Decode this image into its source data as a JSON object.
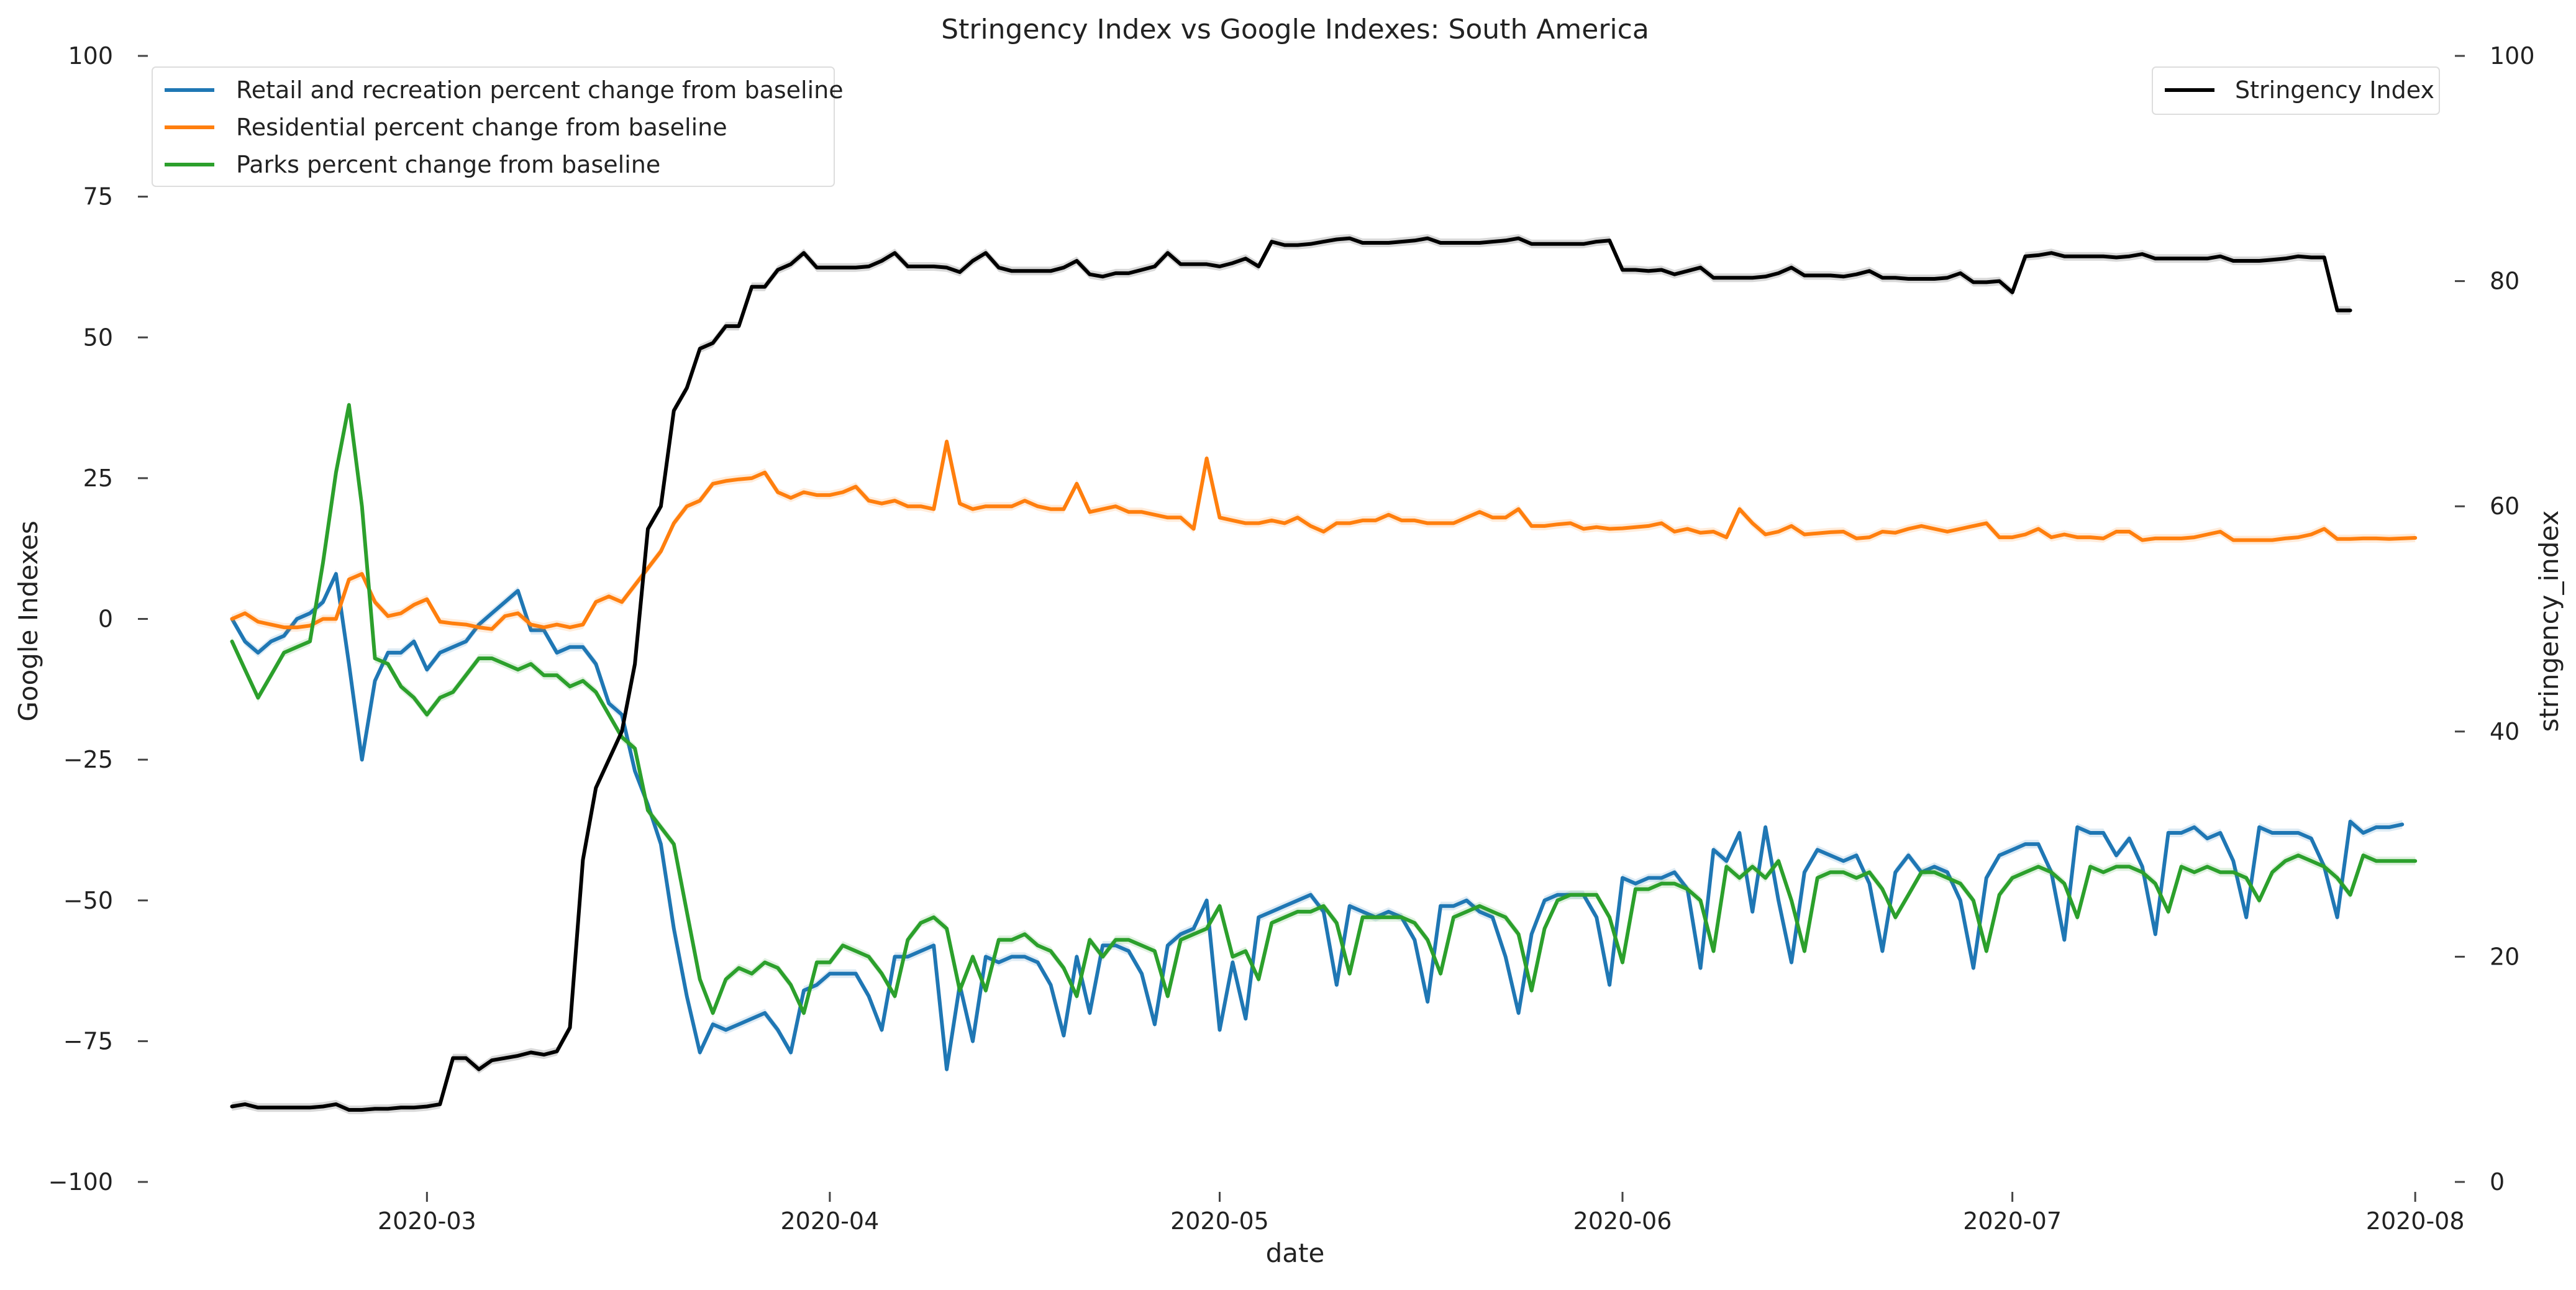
{
  "chart_data": {
    "type": "line",
    "title": "Stringency Index vs Google Indexes:  South America",
    "xlabel": "date",
    "ylabel_left": "Google Indexes",
    "ylabel_right": "stringency_index",
    "x_ticks": [
      "2020-03",
      "2020-04",
      "2020-05",
      "2020-06",
      "2020-07",
      "2020-08"
    ],
    "xlim": [
      "2020-02-09",
      "2020-08-03"
    ],
    "ylim_left": [
      -100,
      100
    ],
    "yticks_left": [
      100,
      75,
      50,
      25,
      0,
      -25,
      -50,
      -75,
      -100
    ],
    "yticks_left_labels": [
      "100",
      "75",
      "50",
      "25",
      "0",
      "−25",
      "−50",
      "−75",
      "−100"
    ],
    "ylim_right": [
      0,
      100
    ],
    "yticks_right": [
      100,
      80,
      60,
      40,
      20,
      0
    ],
    "yticks_right_labels": [
      "100",
      "80",
      "60",
      "40",
      "20",
      "0"
    ],
    "grid": false,
    "legend_left_placement": "upper-left",
    "legend_right_placement": "upper-right",
    "x_start": "2020-02-15",
    "x_step_days": 1,
    "left_series": [
      {
        "name": "Retail and recreation percent change from baseline",
        "color": "#1f77b4",
        "values": [
          0,
          -4,
          -6,
          -4,
          -3,
          0,
          1,
          3,
          8,
          -8,
          -25,
          -11,
          -6,
          -6,
          -4,
          -9,
          -6,
          -5,
          -4,
          -1,
          1,
          3,
          5,
          -2,
          -2,
          -6,
          -5,
          -5,
          -8,
          -15,
          -17,
          -27,
          -33,
          -40,
          -55,
          -67,
          -77,
          -72,
          -73,
          -72,
          -71,
          -70,
          -73,
          -77,
          -66,
          -65,
          -63,
          -63,
          -63,
          -67,
          -73,
          -60,
          -60,
          -59,
          -58,
          -80,
          -65,
          -75,
          -60,
          -61,
          -60,
          -60,
          -61,
          -65,
          -74,
          -60,
          -70,
          -58,
          -58,
          -59,
          -63,
          -72,
          -58,
          -56,
          -55,
          -50,
          -73,
          -61,
          -71,
          -53,
          -52,
          -51,
          -50,
          -49,
          -52,
          -65,
          -51,
          -52,
          -53,
          -52,
          -53,
          -57,
          -68,
          -51,
          -51,
          -50,
          -52,
          -53,
          -60,
          -70,
          -56,
          -50,
          -49,
          -49,
          -49,
          -53,
          -65,
          -46,
          -47,
          -46,
          -46,
          -45,
          -48,
          -62,
          -41,
          -43,
          -38,
          -52,
          -37,
          -50,
          -61,
          -45,
          -41,
          -42,
          -43,
          -42,
          -47,
          -59,
          -45,
          -42,
          -45,
          -44,
          -45,
          -50,
          -62,
          -46,
          -42,
          -41,
          -40,
          -40,
          -45,
          -57,
          -37,
          -38,
          -38,
          -42,
          -39,
          -44,
          -56,
          -38,
          -38,
          -37,
          -39,
          -38,
          -43,
          -53,
          -37,
          -38,
          -38,
          -38,
          -39,
          -44,
          -53,
          -36,
          -38,
          -37,
          -37,
          -36.5
        ]
      },
      {
        "name": "Residential percent change from baseline",
        "color": "#ff7f0e",
        "values": [
          0,
          1,
          -0.5,
          -1,
          -1.5,
          -1.5,
          -1.2,
          0,
          0,
          7,
          8,
          3,
          0.5,
          1,
          2.5,
          3.5,
          -0.5,
          -0.8,
          -1,
          -1.5,
          -1.8,
          0.5,
          1,
          -1,
          -1.5,
          -1,
          -1.5,
          -1,
          3,
          4,
          3,
          6,
          9,
          12,
          17,
          20,
          21,
          24,
          24.5,
          24.8,
          25,
          26,
          22.5,
          21.5,
          22.5,
          22,
          22,
          22.5,
          23.5,
          21,
          20.5,
          21,
          20,
          20,
          19.5,
          31.5,
          20.5,
          19.5,
          20,
          20,
          20,
          21,
          20,
          19.5,
          19.5,
          24,
          19,
          19.5,
          20,
          19,
          19,
          18.5,
          18,
          18,
          16,
          28.5,
          18,
          17.5,
          17,
          17,
          17.5,
          17,
          18,
          16.5,
          15.5,
          17,
          17,
          17.5,
          17.5,
          18.5,
          17.5,
          17.5,
          17,
          17,
          17,
          18,
          19,
          18,
          18,
          19.5,
          16.5,
          16.5,
          16.8,
          17,
          16,
          16.3,
          16,
          16.1,
          16.3,
          16.5,
          17,
          15.5,
          16,
          15.3,
          15.5,
          14.5,
          19.5,
          17,
          15,
          15.5,
          16.5,
          15,
          15.2,
          15.4,
          15.5,
          14.3,
          14.5,
          15.5,
          15.3,
          16,
          16.5,
          16,
          15.5,
          16,
          16.5,
          17,
          14.5,
          14.5,
          15,
          16,
          14.5,
          15,
          14.5,
          14.5,
          14.3,
          15.5,
          15.5,
          14,
          14.3,
          14.3,
          14.3,
          14.5,
          15,
          15.5,
          14,
          14,
          14,
          14,
          14.3,
          14.5,
          15,
          16,
          14.2,
          14.2,
          14.3,
          14.3,
          14.2,
          14.3,
          14.4
        ]
      },
      {
        "name": "Parks percent change from baseline",
        "color": "#2ca02c",
        "values": [
          -4,
          -9,
          -14,
          -10,
          -6,
          -5,
          -4,
          10,
          26,
          38,
          20,
          -7,
          -8,
          -12,
          -14,
          -17,
          -14,
          -13,
          -10,
          -7,
          -7,
          -8,
          -9,
          -8,
          -10,
          -10,
          -12,
          -11,
          -13,
          -17,
          -21,
          -23,
          -34,
          -37,
          -40,
          -52,
          -64,
          -70,
          -64,
          -62,
          -63,
          -61,
          -62,
          -65,
          -70,
          -61,
          -61,
          -58,
          -59,
          -60,
          -63,
          -67,
          -57,
          -54,
          -53,
          -55,
          -66,
          -60,
          -66,
          -57,
          -57,
          -56,
          -58,
          -59,
          -62,
          -67,
          -57,
          -60,
          -57,
          -57,
          -58,
          -59,
          -67,
          -57,
          -56,
          -55,
          -51,
          -60,
          -59,
          -64,
          -54,
          -53,
          -52,
          -52,
          -51,
          -54,
          -63,
          -53,
          -53,
          -53,
          -53,
          -54,
          -57,
          -63,
          -53,
          -52,
          -51,
          -52,
          -53,
          -56,
          -66,
          -55,
          -50,
          -49,
          -49,
          -49,
          -53,
          -61,
          -48,
          -48,
          -47,
          -47,
          -48,
          -50,
          -59,
          -44,
          -46,
          -44,
          -46,
          -43,
          -50,
          -59,
          -46,
          -45,
          -45,
          -46,
          -45,
          -48,
          -53,
          -49,
          -45,
          -45,
          -46,
          -47,
          -50,
          -59,
          -49,
          -46,
          -45,
          -44,
          -45,
          -47,
          -53,
          -44,
          -45,
          -44,
          -44,
          -45,
          -47,
          -52,
          -44,
          -45,
          -44,
          -45,
          -45,
          -46,
          -50,
          -45,
          -43,
          -42,
          -43,
          -44,
          -46,
          -49,
          -42,
          -43,
          -43,
          -43,
          -43
        ]
      }
    ],
    "right_series": [
      {
        "name": "Stringency Index",
        "color": "#000000",
        "values": [
          6.7,
          6.9,
          6.6,
          6.6,
          6.6,
          6.6,
          6.6,
          6.7,
          6.9,
          6.4,
          6.4,
          6.5,
          6.5,
          6.6,
          6.6,
          6.7,
          6.9,
          11,
          11,
          10,
          10.8,
          11,
          11.2,
          11.5,
          11.3,
          11.6,
          13.7,
          28.6,
          35,
          37.5,
          40,
          46,
          58,
          60,
          68.5,
          70.5,
          74,
          74.5,
          76,
          76,
          79.5,
          79.5,
          81,
          81.5,
          82.5,
          81.2,
          81.2,
          81.2,
          81.2,
          81.3,
          81.8,
          82.5,
          81.3,
          81.3,
          81.3,
          81.2,
          80.8,
          81.8,
          82.5,
          81.2,
          80.9,
          80.9,
          80.9,
          80.9,
          81.2,
          81.8,
          80.6,
          80.4,
          80.7,
          80.7,
          81,
          81.3,
          82.5,
          81.5,
          81.5,
          81.5,
          81.3,
          81.6,
          82,
          81.3,
          83.5,
          83.2,
          83.2,
          83.3,
          83.5,
          83.7,
          83.8,
          83.4,
          83.4,
          83.4,
          83.5,
          83.6,
          83.8,
          83.4,
          83.4,
          83.4,
          83.4,
          83.5,
          83.6,
          83.8,
          83.3,
          83.3,
          83.3,
          83.3,
          83.3,
          83.5,
          83.6,
          81,
          81,
          80.9,
          81,
          80.6,
          80.9,
          81.2,
          80.3,
          80.3,
          80.3,
          80.3,
          80.4,
          80.7,
          81.2,
          80.5,
          80.5,
          80.5,
          80.4,
          80.6,
          80.9,
          80.3,
          80.3,
          80.2,
          80.2,
          80.2,
          80.3,
          80.7,
          79.9,
          79.9,
          80,
          79,
          82.2,
          82.3,
          82.5,
          82.2,
          82.2,
          82.2,
          82.2,
          82.1,
          82.2,
          82.4,
          82,
          82,
          82,
          82,
          82,
          82.2,
          81.8,
          81.8,
          81.8,
          81.9,
          82,
          82.2,
          82.1,
          82.1,
          77.4,
          77.4
        ]
      }
    ]
  }
}
